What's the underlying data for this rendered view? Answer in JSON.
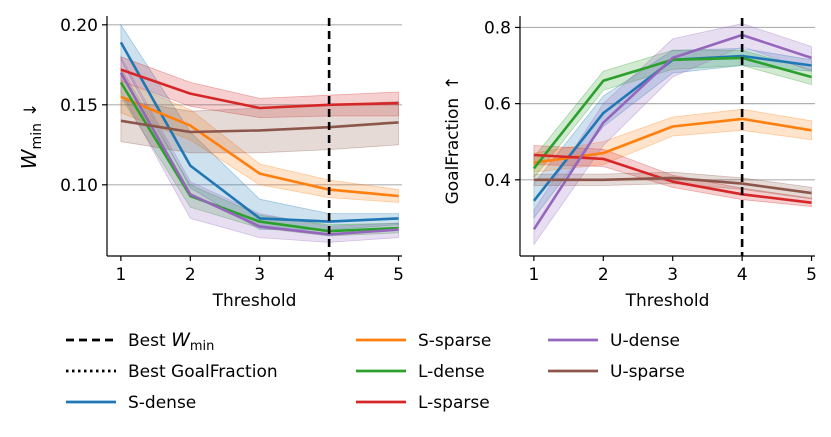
{
  "colors": {
    "S-dense": "#1f77b4",
    "S-sparse": "#ff7f0e",
    "L-dense": "#2ca02c",
    "L-sparse": "#d62728",
    "U-dense": "#9467bd",
    "U-sparse": "#8c564b"
  },
  "legend": {
    "best_wmin_prefix": "Best ",
    "best_wmin_var": "W",
    "best_wmin_sub": "min",
    "best_goal": "Best GoalFraction",
    "series": [
      "S-dense",
      "S-sparse",
      "L-dense",
      "L-sparse",
      "U-dense",
      "U-sparse"
    ]
  },
  "chart_data": [
    {
      "type": "line",
      "panel": "left",
      "xlabel": "Threshold",
      "ylabel_var": "W",
      "ylabel_sub": "min",
      "ylabel_arrow": "↓",
      "x": [
        1,
        2,
        3,
        4,
        5
      ],
      "xticks": [
        "1",
        "2",
        "3",
        "4",
        "5"
      ],
      "yticks": [
        0.1,
        0.15,
        0.2
      ],
      "ytick_labels": [
        "0.10",
        "0.15",
        "0.20"
      ],
      "xlim": [
        0.8,
        5.05
      ],
      "ylim": [
        0.0555,
        0.2055
      ],
      "best_x": 4,
      "series": [
        {
          "name": "S-dense",
          "values": [
            0.189,
            0.112,
            0.079,
            0.077,
            0.079
          ],
          "lower": [
            0.178,
            0.098,
            0.072,
            0.072,
            0.075
          ],
          "upper": [
            0.2,
            0.133,
            0.091,
            0.082,
            0.082
          ]
        },
        {
          "name": "S-sparse",
          "values": [
            0.155,
            0.137,
            0.107,
            0.097,
            0.093
          ],
          "lower": [
            0.145,
            0.128,
            0.1,
            0.092,
            0.089
          ],
          "upper": [
            0.165,
            0.147,
            0.113,
            0.103,
            0.097
          ]
        },
        {
          "name": "L-dense",
          "values": [
            0.164,
            0.093,
            0.077,
            0.071,
            0.073
          ],
          "lower": [
            0.155,
            0.086,
            0.073,
            0.068,
            0.07
          ],
          "upper": [
            0.173,
            0.1,
            0.081,
            0.075,
            0.076
          ]
        },
        {
          "name": "L-sparse",
          "values": [
            0.172,
            0.157,
            0.148,
            0.15,
            0.151
          ],
          "lower": [
            0.165,
            0.149,
            0.142,
            0.143,
            0.143
          ],
          "upper": [
            0.18,
            0.164,
            0.154,
            0.156,
            0.158
          ]
        },
        {
          "name": "U-dense",
          "values": [
            0.17,
            0.094,
            0.074,
            0.069,
            0.072
          ],
          "lower": [
            0.158,
            0.079,
            0.067,
            0.064,
            0.067
          ],
          "upper": [
            0.18,
            0.102,
            0.082,
            0.074,
            0.076
          ]
        },
        {
          "name": "U-sparse",
          "values": [
            0.14,
            0.133,
            0.134,
            0.136,
            0.139
          ],
          "lower": [
            0.127,
            0.12,
            0.12,
            0.122,
            0.125
          ],
          "upper": [
            0.153,
            0.146,
            0.148,
            0.15,
            0.152
          ]
        }
      ]
    },
    {
      "type": "line",
      "panel": "right",
      "xlabel": "Threshold",
      "ylabel": "GoalFraction",
      "ylabel_arrow": "↑",
      "x": [
        1,
        2,
        3,
        4,
        5
      ],
      "xticks": [
        "1",
        "2",
        "3",
        "4",
        "5"
      ],
      "yticks": [
        0.4,
        0.6,
        0.8
      ],
      "ytick_labels": [
        "0.4",
        "0.6",
        "0.8"
      ],
      "xlim": [
        0.8,
        5.05
      ],
      "ylim": [
        0.2,
        0.83
      ],
      "best_x": 4,
      "series": [
        {
          "name": "S-dense",
          "values": [
            0.345,
            0.575,
            0.715,
            0.725,
            0.7
          ],
          "lower": [
            0.3,
            0.54,
            0.68,
            0.7,
            0.685
          ],
          "upper": [
            0.39,
            0.62,
            0.74,
            0.745,
            0.715
          ]
        },
        {
          "name": "S-sparse",
          "values": [
            0.445,
            0.47,
            0.54,
            0.56,
            0.53
          ],
          "lower": [
            0.42,
            0.44,
            0.515,
            0.53,
            0.505
          ],
          "upper": [
            0.47,
            0.5,
            0.565,
            0.585,
            0.555
          ]
        },
        {
          "name": "L-dense",
          "values": [
            0.43,
            0.66,
            0.715,
            0.72,
            0.67
          ],
          "lower": [
            0.405,
            0.635,
            0.69,
            0.7,
            0.65
          ],
          "upper": [
            0.46,
            0.685,
            0.74,
            0.74,
            0.69
          ]
        },
        {
          "name": "L-sparse",
          "values": [
            0.465,
            0.455,
            0.395,
            0.362,
            0.34
          ],
          "lower": [
            0.44,
            0.435,
            0.38,
            0.348,
            0.33
          ],
          "upper": [
            0.49,
            0.48,
            0.412,
            0.378,
            0.352
          ]
        },
        {
          "name": "U-dense",
          "values": [
            0.27,
            0.55,
            0.72,
            0.78,
            0.72
          ],
          "lower": [
            0.23,
            0.49,
            0.67,
            0.75,
            0.685
          ],
          "upper": [
            0.32,
            0.6,
            0.77,
            0.81,
            0.75
          ]
        },
        {
          "name": "U-sparse",
          "values": [
            0.4,
            0.4,
            0.405,
            0.39,
            0.365
          ],
          "lower": [
            0.385,
            0.385,
            0.39,
            0.375,
            0.35
          ],
          "upper": [
            0.415,
            0.415,
            0.42,
            0.405,
            0.38
          ]
        }
      ]
    }
  ]
}
